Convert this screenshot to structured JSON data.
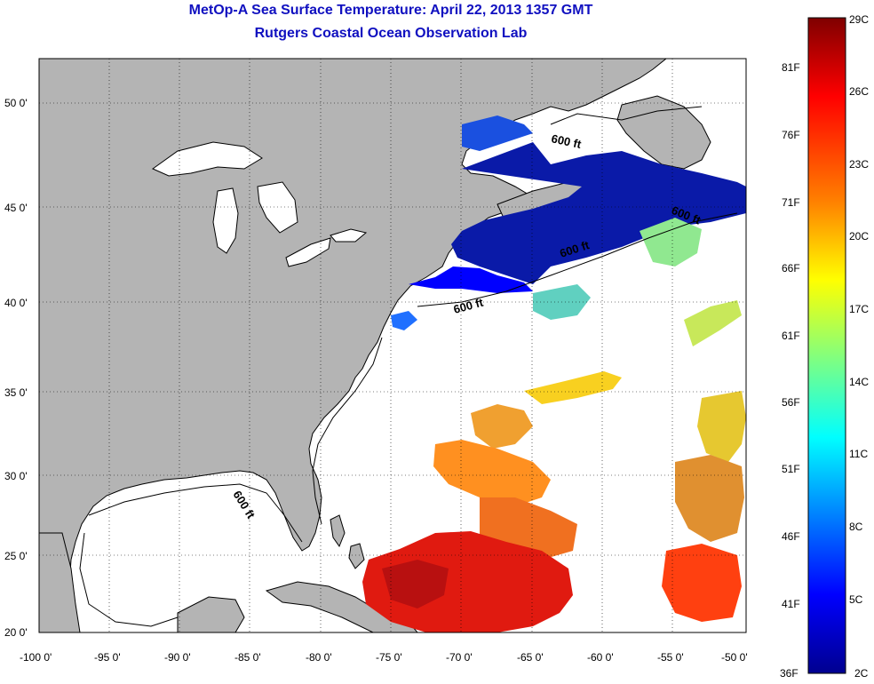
{
  "header": {
    "title": "MetOp-A Sea Surface Temperature:  April 22, 2013 1357 GMT",
    "subtitle": "Rutgers Coastal Ocean Observation Lab"
  },
  "map": {
    "lat_ticks": [
      "50 0'",
      "45 0'",
      "40 0'",
      "35 0'",
      "30 0'",
      "25 0'",
      "20 0'"
    ],
    "lon_ticks": [
      "-100 0'",
      "-95 0'",
      "-90 0'",
      "-85 0'",
      "-80 0'",
      "-75 0'",
      "-70 0'",
      "-65 0'",
      "-60 0'",
      "-55 0'",
      "-50 0'"
    ],
    "contour_labels": [
      "600 ft",
      "600 ft",
      "600 ft",
      "600 ft",
      "600 ft"
    ],
    "land_color": "#b4b4b4",
    "ocean_color": "#ffffff"
  },
  "colorbar": {
    "fahrenheit_labels": [
      "81F",
      "76F",
      "71F",
      "66F",
      "61F",
      "56F",
      "51F",
      "46F",
      "41F",
      "36F"
    ],
    "celsius_labels": [
      "29C",
      "26C",
      "23C",
      "20C",
      "17C",
      "14C",
      "11C",
      "8C",
      "5C",
      "2C"
    ],
    "colors": [
      "#7f0000",
      "#ff0000",
      "#ff8000",
      "#ffff00",
      "#80ff80",
      "#00ffff",
      "#0080ff",
      "#0000ff",
      "#00008f"
    ]
  }
}
